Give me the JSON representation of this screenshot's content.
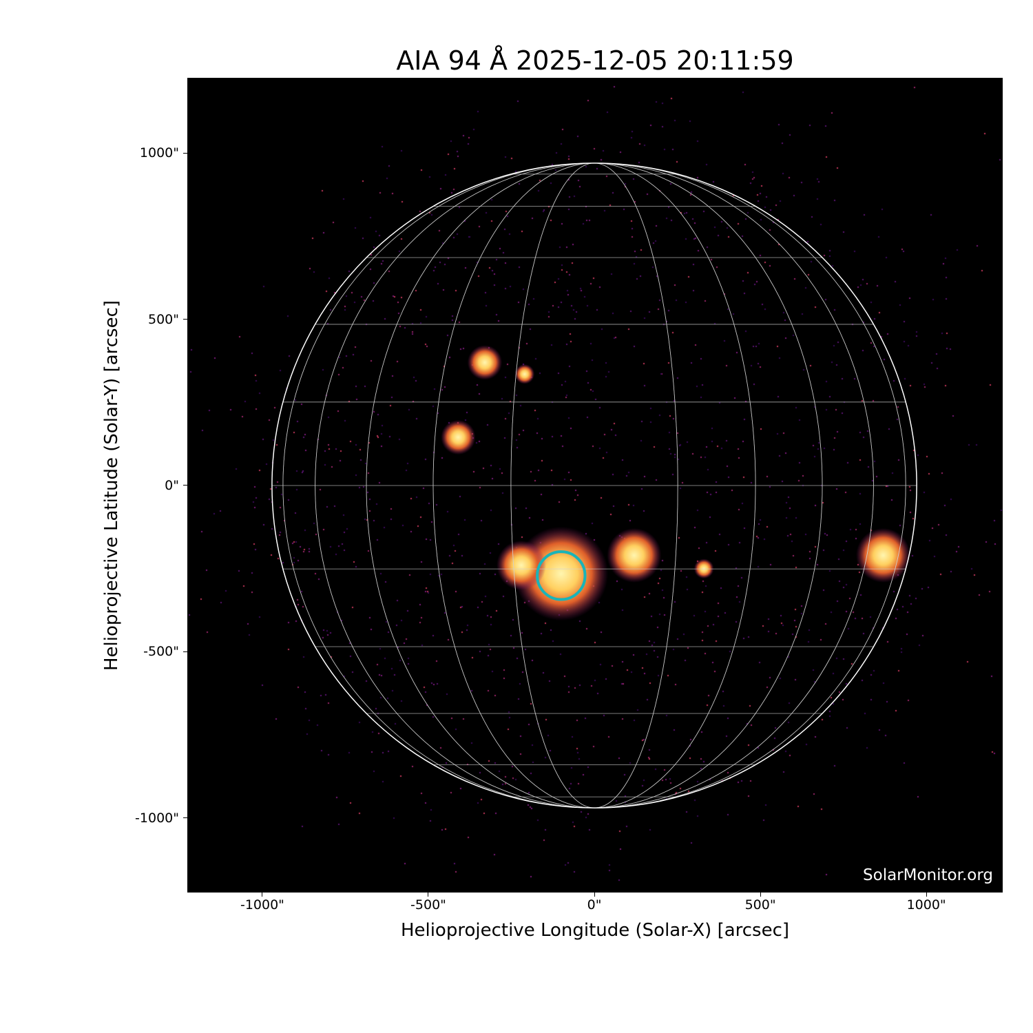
{
  "chart_data": {
    "type": "image",
    "title": "AIA 94 Å 2025-12-05 20:11:59",
    "xlabel": "Helioprojective Longitude (Solar-X) [arcsec]",
    "ylabel": "Helioprojective Latitude (Solar-Y) [arcsec]",
    "xlim": [
      -1226,
      1230
    ],
    "ylim": [
      -1224,
      1226
    ],
    "x_ticks": [
      {
        "value": -1000,
        "label": "-1000\""
      },
      {
        "value": -500,
        "label": "-500\""
      },
      {
        "value": 0,
        "label": "0\""
      },
      {
        "value": 500,
        "label": "500\""
      },
      {
        "value": 1000,
        "label": "1000\""
      }
    ],
    "y_ticks": [
      {
        "value": 1000,
        "label": "1000\""
      },
      {
        "value": 500,
        "label": "500\""
      },
      {
        "value": 0,
        "label": "0\""
      },
      {
        "value": -500,
        "label": "-500\""
      },
      {
        "value": -1000,
        "label": "-1000\""
      }
    ],
    "colormap": "sdoaia94 (black-purple-orange-yellow)",
    "solar_radius_arcsec": 971,
    "heliographic_grid_spacing_deg": 15,
    "grid": true,
    "highlight_circle": {
      "x": -100,
      "y": -271,
      "radius_arcsec": 72,
      "color": "#1ab4b8"
    },
    "watermark": "SolarMonitor.org"
  }
}
